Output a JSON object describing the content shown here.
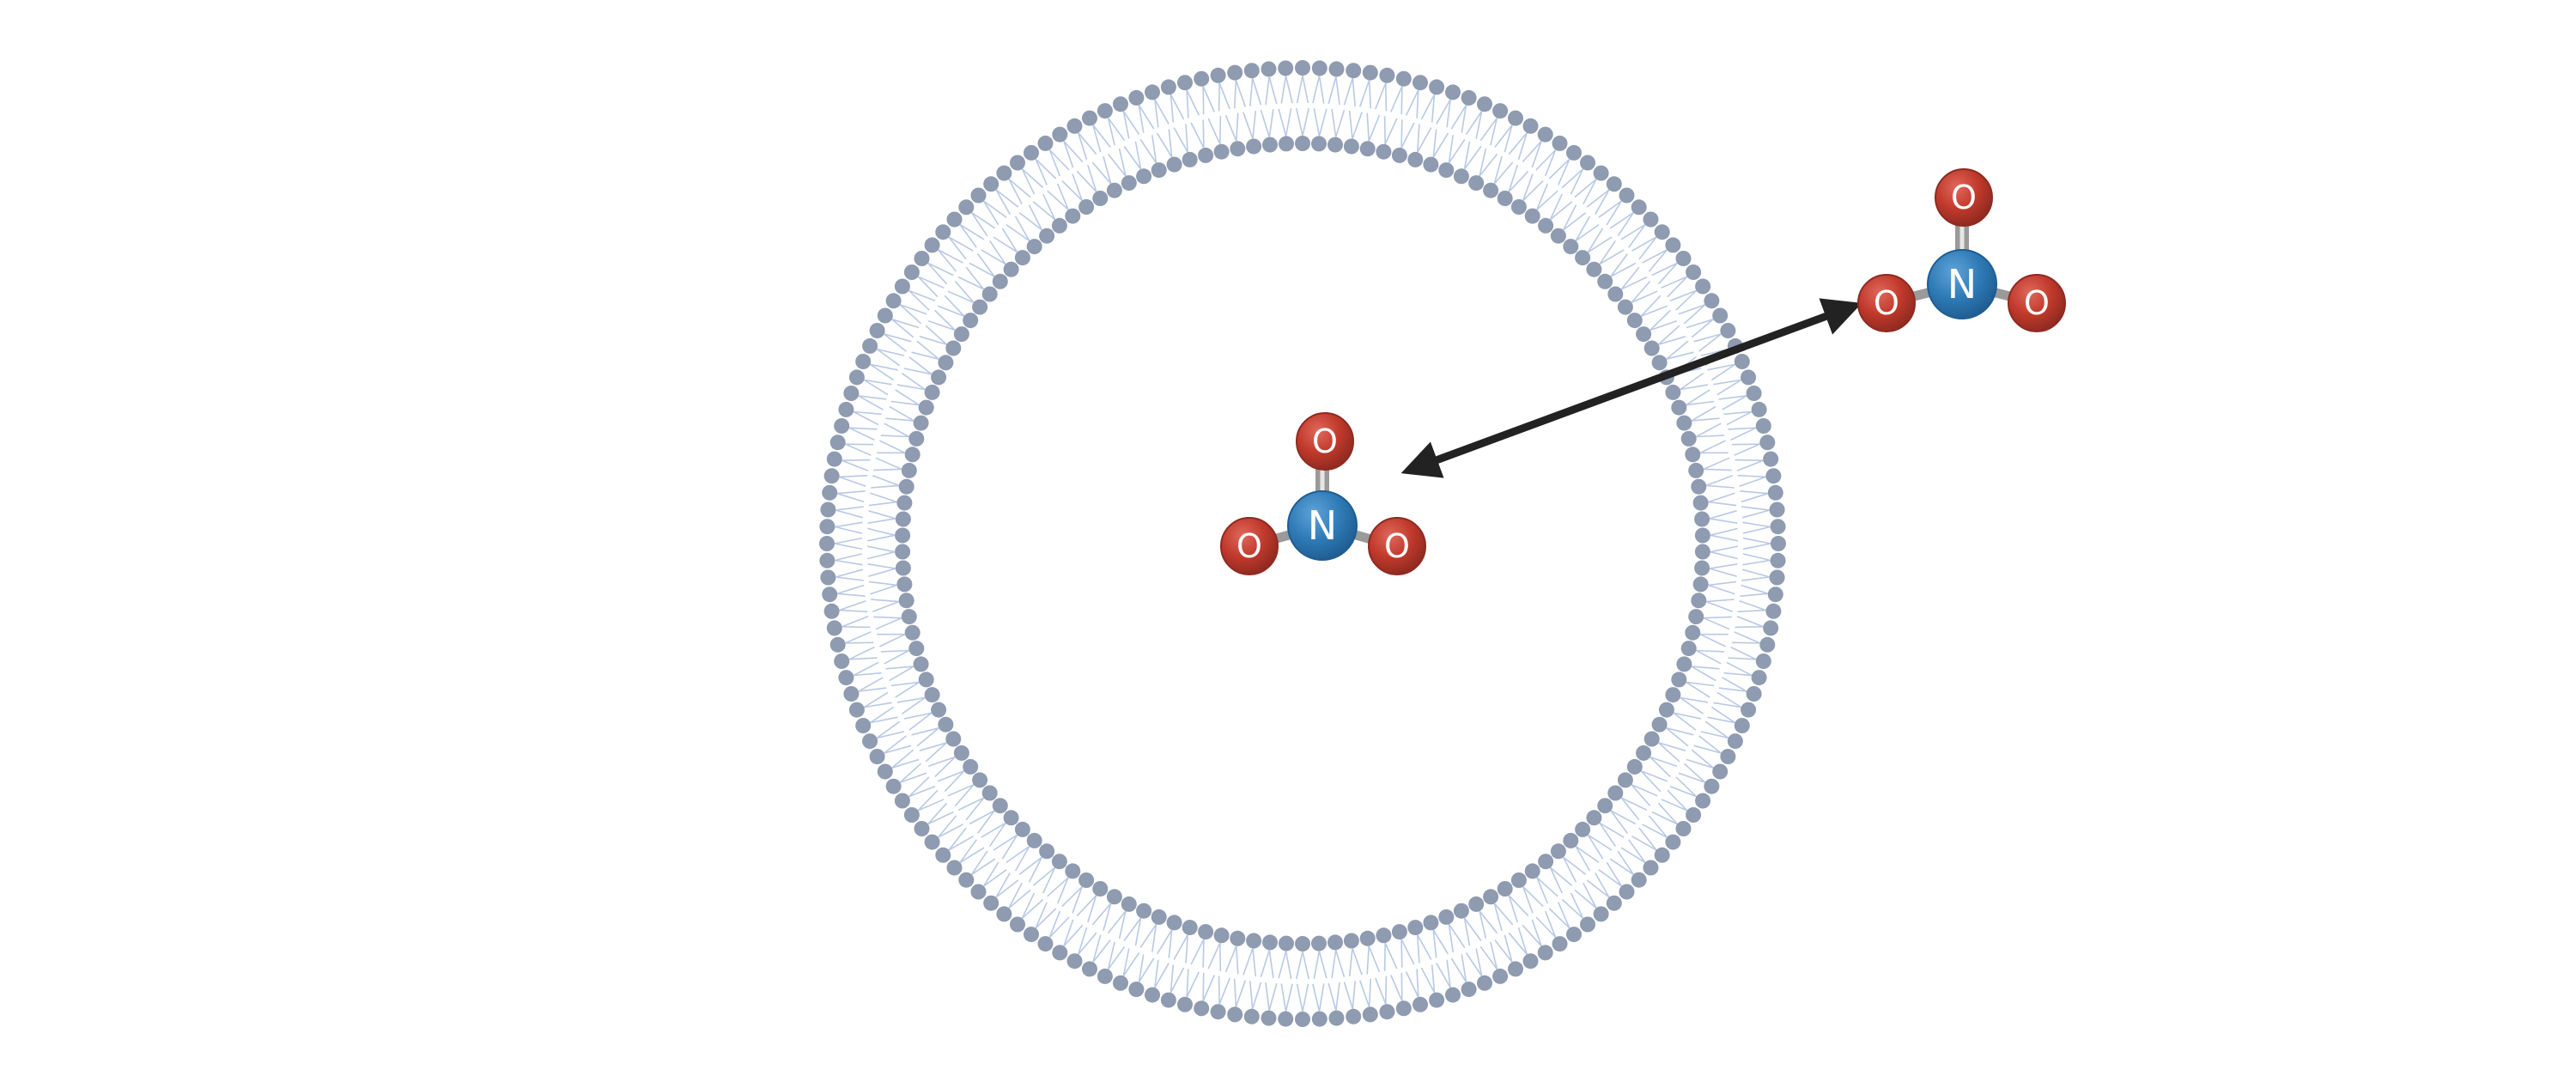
{
  "membrane": {
    "head_color": "#8e9bb0",
    "tail_color": "#b9c9e4",
    "heads_outer_count": 176,
    "heads_inner_count": 154
  },
  "arrow": {
    "color": "#222222",
    "direction": "bidirectional"
  },
  "molecule_inside": {
    "center_atom": "N",
    "bonded_atoms": [
      "O",
      "O",
      "O"
    ]
  },
  "molecule_outside": {
    "center_atom": "N",
    "bonded_atoms": [
      "O",
      "O",
      "O"
    ]
  },
  "colors": {
    "nitrogen": "#2f7bb7",
    "nitrogen_dark": "#1f5d92",
    "oxygen": "#c0392b",
    "oxygen_dark": "#8f2a21",
    "bond": "#9a9a9a",
    "bond_highlight": "#e6e6e6"
  }
}
